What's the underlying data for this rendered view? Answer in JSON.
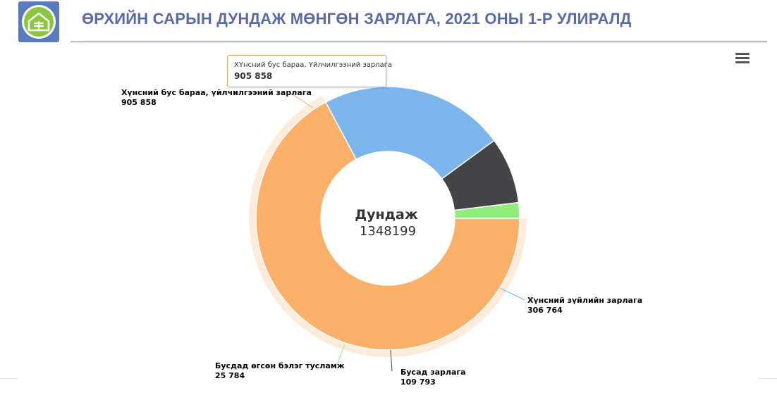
{
  "header": {
    "title": "ӨРХИЙН САРЫН ДУНДАЖ МӨНГӨН ЗАРЛАГА, 2021 ОНЫ 1-Р УЛИРАЛД",
    "logo_icon": "ger-logo-icon",
    "menu_icon": "hamburger-menu-icon"
  },
  "tooltip": {
    "name": "ХҮнсний бус бараа, Үйлчилгээний зарлага",
    "value": "905 858"
  },
  "chart_data": {
    "type": "pie",
    "variant": "donut",
    "center_title": "Дундаж",
    "center_value": "1348199",
    "slices": [
      {
        "name": "Хүнсний бус бараа, үйлчилгээний зарлага",
        "value": 905858,
        "label_value": "905 858",
        "color": "#fbb06a"
      },
      {
        "name": "Хүнсний зүйлийн зарлага",
        "value": 306764,
        "label_value": "306 764",
        "color": "#7cb5ec"
      },
      {
        "name": "Бусад зарлага",
        "value": 109793,
        "label_value": "109 793",
        "color": "#434348"
      },
      {
        "name": "Бусдад өгсөн бэлэг тусламж",
        "value": 25784,
        "label_value": "25 784",
        "color": "#90ed7d"
      }
    ],
    "hovered_slice": 0
  }
}
